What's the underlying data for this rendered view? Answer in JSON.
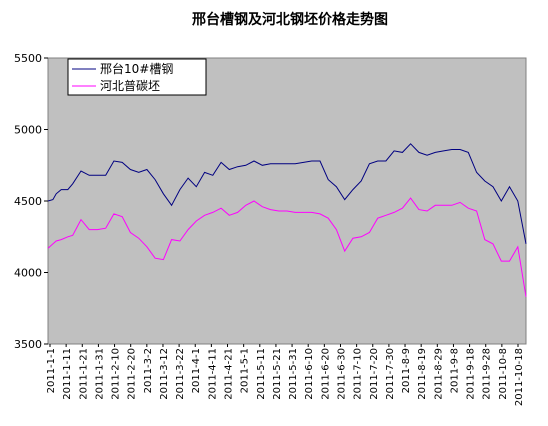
{
  "chart_data": {
    "type": "line",
    "title": "邢台槽钢及河北钢坯价格走势图",
    "ylim": [
      3500,
      5500
    ],
    "yticks": [
      3500,
      4000,
      4500,
      5000,
      5500
    ],
    "ytick_labels": [
      "3500",
      "4000",
      "4500",
      "5000",
      "5500"
    ],
    "grid": false,
    "legend_position": "top-left",
    "plot_background": "#c0c0c0",
    "x_tick_labels": [
      "2011-1-1",
      "2011-1-11",
      "2011-1-21",
      "2011-1-31",
      "2011-2-10",
      "2011-2-20",
      "2011-3-2",
      "2011-3-12",
      "2011-3-22",
      "2011-4-1",
      "2011-4-11",
      "2011-4-21",
      "2011-5-1",
      "2011-5-11",
      "2011-5-21",
      "2011-5-31",
      "2011-6-10",
      "2011-6-20",
      "2011-6-30",
      "2011-7-10",
      "2011-7-20",
      "2011-7-30",
      "2011-8-9",
      "2011-8-19",
      "2011-8-29",
      "2011-9-8",
      "2011-9-18",
      "2011-9-28",
      "2011-10-8",
      "2011-10-18"
    ],
    "x": [
      0,
      3,
      5,
      8,
      12,
      15,
      20,
      25,
      30,
      35,
      40,
      45,
      50,
      55,
      60,
      65,
      70,
      75,
      80,
      85,
      90,
      95,
      100,
      105,
      110,
      115,
      120,
      125,
      130,
      135,
      140,
      145,
      150,
      155,
      160,
      165,
      170,
      175,
      180,
      185,
      190,
      195,
      200,
      205,
      210,
      215,
      220,
      225,
      230,
      235,
      240,
      245,
      250,
      255,
      260,
      265,
      270,
      275,
      280,
      285,
      290
    ],
    "series": [
      {
        "name": "邢台10#槽钢",
        "color": "#000080",
        "values": [
          4500,
          4510,
          4550,
          4580,
          4580,
          4620,
          4710,
          4680,
          4680,
          4680,
          4780,
          4770,
          4720,
          4700,
          4720,
          4650,
          4550,
          4470,
          4580,
          4660,
          4600,
          4700,
          4680,
          4770,
          4720,
          4740,
          4750,
          4780,
          4750,
          4760,
          4760,
          4760,
          4760,
          4770,
          4780,
          4780,
          4650,
          4600,
          4510,
          4580,
          4640,
          4760,
          4780,
          4780,
          4850,
          4840,
          4900,
          4840,
          4820,
          4840,
          4850,
          4860,
          4860,
          4840,
          4700,
          4640,
          4600,
          4500,
          4600,
          4500,
          4200
        ]
      },
      {
        "name": "河北普碳坯",
        "color": "#ff00ff",
        "values": [
          4170,
          4200,
          4220,
          4230,
          4250,
          4260,
          4370,
          4300,
          4300,
          4310,
          4410,
          4390,
          4280,
          4240,
          4180,
          4100,
          4090,
          4230,
          4220,
          4300,
          4360,
          4400,
          4420,
          4450,
          4400,
          4420,
          4470,
          4500,
          4460,
          4440,
          4430,
          4430,
          4420,
          4420,
          4420,
          4410,
          4380,
          4300,
          4150,
          4240,
          4250,
          4280,
          4380,
          4400,
          4420,
          4450,
          4520,
          4440,
          4430,
          4470,
          4470,
          4470,
          4490,
          4450,
          4430,
          4230,
          4200,
          4080,
          4080,
          4180,
          3830
        ]
      }
    ],
    "x_range": [
      0,
      290
    ]
  }
}
